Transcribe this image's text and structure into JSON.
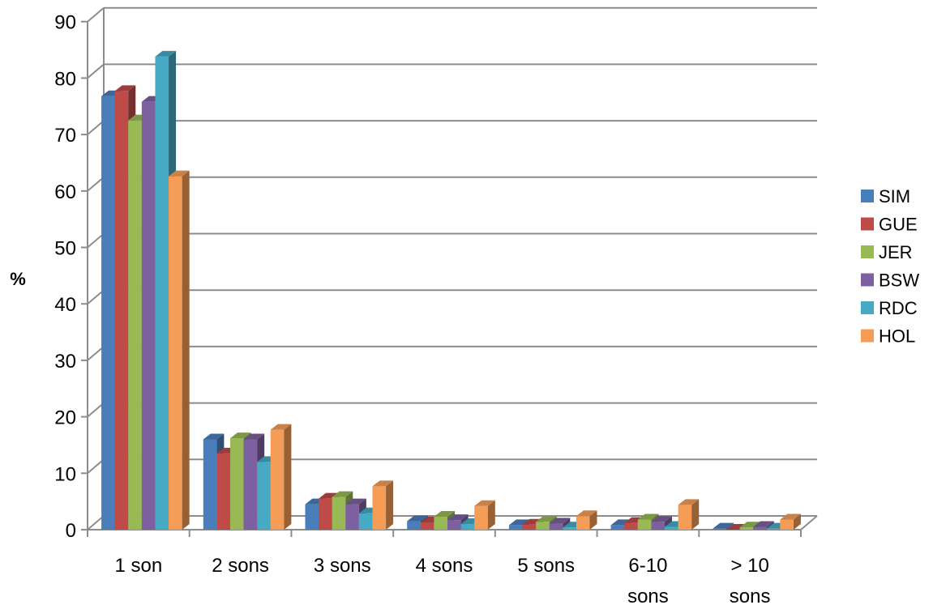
{
  "chart_data": {
    "type": "bar",
    "ylabel": "%",
    "xlabel": "",
    "categories": [
      [
        "1 son"
      ],
      [
        "2 sons"
      ],
      [
        "3 sons"
      ],
      [
        "4 sons"
      ],
      [
        "5 sons"
      ],
      [
        "6-10",
        "sons"
      ],
      [
        "> 10",
        "sons"
      ]
    ],
    "ylim": [
      0,
      90
    ],
    "yticks": [
      0,
      10,
      20,
      30,
      40,
      50,
      60,
      70,
      80,
      90
    ],
    "grid": true,
    "legend_position": "right",
    "series": [
      {
        "name": "SIM",
        "color": "#4a7ebb",
        "values": [
          76.8,
          16.0,
          4.5,
          1.5,
          0.8,
          0.8,
          0.2
        ]
      },
      {
        "name": "GUE",
        "color": "#be4b48",
        "values": [
          77.7,
          13.5,
          5.5,
          1.3,
          0.9,
          1.2,
          0.0
        ]
      },
      {
        "name": "JER",
        "color": "#98b954",
        "values": [
          72.5,
          16.2,
          5.8,
          2.3,
          1.4,
          1.8,
          0.4
        ]
      },
      {
        "name": "BSW",
        "color": "#7d60a0",
        "values": [
          75.8,
          16.0,
          4.5,
          1.7,
          1.1,
          1.4,
          0.5
        ]
      },
      {
        "name": "RDC",
        "color": "#46aac5",
        "values": [
          83.8,
          12.0,
          2.9,
          1.0,
          0.4,
          0.5,
          0.2
        ]
      },
      {
        "name": "HOL",
        "color": "#f59d56",
        "values": [
          62.6,
          17.7,
          7.7,
          4.2,
          2.4,
          4.4,
          1.8
        ]
      }
    ]
  }
}
